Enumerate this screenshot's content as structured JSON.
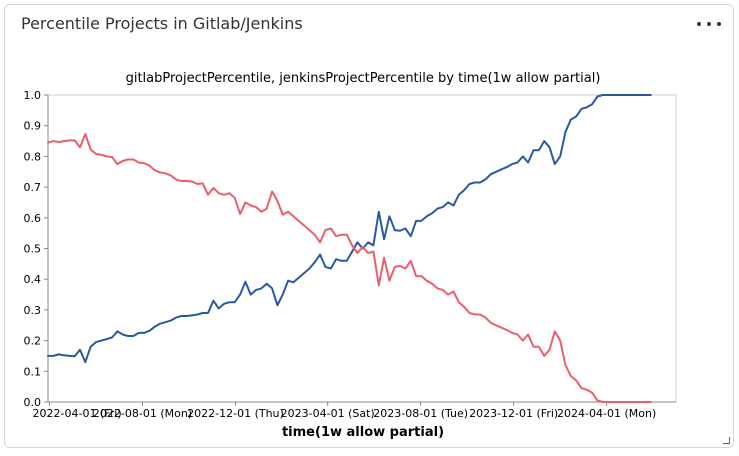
{
  "panel": {
    "title": "Percentile Projects in Gitlab/Jenkins",
    "menu_icon": "ellipsis-icon",
    "resize_icon": "resize-handle-icon"
  },
  "chart_data": {
    "type": "line",
    "title": "gitlabProjectPercentile, jenkinsProjectPercentile by time(1w allow partial)",
    "xlabel": "time(1w allow partial)",
    "ylabel": "",
    "xlim": [
      "2022-03-30",
      "2024-07-01"
    ],
    "ylim": [
      0,
      1
    ],
    "y_ticks": [
      0.0,
      0.1,
      0.2,
      0.3,
      0.4,
      0.5,
      0.6,
      0.7,
      0.8,
      0.9,
      1.0
    ],
    "y_tick_labels": [
      "0.0",
      "0.1",
      "0.2",
      "0.3",
      "0.4",
      "0.5",
      "0.6",
      "0.7",
      "0.8",
      "0.9",
      "1.0"
    ],
    "x_ticks": [
      {
        "date": "2022-04-01",
        "label": "2022-04-01 (Fri)"
      },
      {
        "date": "2022-08-01",
        "label": "2022-08-01 (Mon)"
      },
      {
        "date": "2022-12-01",
        "label": "2022-12-01 (Thu)"
      },
      {
        "date": "2023-04-01",
        "label": "2023-04-01 (Sat)"
      },
      {
        "date": "2023-08-01",
        "label": "2023-08-01 (Tue)"
      },
      {
        "date": "2023-12-01",
        "label": "2023-12-01 (Fri)"
      },
      {
        "date": "2024-04-01",
        "label": "2024-04-01 (Mon)"
      }
    ],
    "grid": false,
    "legend": "none",
    "series": [
      {
        "key": "gitlabProjectPercentile",
        "color": "#2a59a3",
        "points": [
          [
            "2022-03-30",
            0.15
          ],
          [
            "2022-04-06",
            0.15
          ],
          [
            "2022-04-13",
            0.155
          ],
          [
            "2022-04-20",
            0.152
          ],
          [
            "2022-04-27",
            0.15
          ],
          [
            "2022-05-04",
            0.149
          ],
          [
            "2022-05-11",
            0.17
          ],
          [
            "2022-05-18",
            0.13
          ],
          [
            "2022-05-25",
            0.18
          ],
          [
            "2022-06-01",
            0.195
          ],
          [
            "2022-06-08",
            0.2
          ],
          [
            "2022-06-15",
            0.205
          ],
          [
            "2022-06-22",
            0.21
          ],
          [
            "2022-06-29",
            0.23
          ],
          [
            "2022-07-06",
            0.22
          ],
          [
            "2022-07-13",
            0.215
          ],
          [
            "2022-07-20",
            0.215
          ],
          [
            "2022-07-27",
            0.225
          ],
          [
            "2022-08-03",
            0.225
          ],
          [
            "2022-08-10",
            0.232
          ],
          [
            "2022-08-17",
            0.245
          ],
          [
            "2022-08-24",
            0.255
          ],
          [
            "2022-08-31",
            0.26
          ],
          [
            "2022-09-07",
            0.265
          ],
          [
            "2022-09-14",
            0.275
          ],
          [
            "2022-09-21",
            0.28
          ],
          [
            "2022-09-28",
            0.28
          ],
          [
            "2022-10-05",
            0.282
          ],
          [
            "2022-10-12",
            0.285
          ],
          [
            "2022-10-19",
            0.29
          ],
          [
            "2022-10-26",
            0.29
          ],
          [
            "2022-11-02",
            0.33
          ],
          [
            "2022-11-09",
            0.305
          ],
          [
            "2022-11-16",
            0.32
          ],
          [
            "2022-11-23",
            0.325
          ],
          [
            "2022-11-30",
            0.325
          ],
          [
            "2022-12-07",
            0.35
          ],
          [
            "2022-12-14",
            0.392
          ],
          [
            "2022-12-21",
            0.35
          ],
          [
            "2022-12-28",
            0.365
          ],
          [
            "2023-01-04",
            0.37
          ],
          [
            "2023-01-11",
            0.385
          ],
          [
            "2023-01-18",
            0.37
          ],
          [
            "2023-01-25",
            0.315
          ],
          [
            "2023-02-01",
            0.35
          ],
          [
            "2023-02-08",
            0.395
          ],
          [
            "2023-02-15",
            0.39
          ],
          [
            "2023-02-22",
            0.405
          ],
          [
            "2023-03-01",
            0.42
          ],
          [
            "2023-03-08",
            0.435
          ],
          [
            "2023-03-15",
            0.455
          ],
          [
            "2023-03-22",
            0.48
          ],
          [
            "2023-03-29",
            0.44
          ],
          [
            "2023-04-05",
            0.435
          ],
          [
            "2023-04-12",
            0.465
          ],
          [
            "2023-04-19",
            0.46
          ],
          [
            "2023-04-26",
            0.46
          ],
          [
            "2023-05-03",
            0.49
          ],
          [
            "2023-05-10",
            0.52
          ],
          [
            "2023-05-17",
            0.5
          ],
          [
            "2023-05-24",
            0.52
          ],
          [
            "2023-05-31",
            0.51
          ],
          [
            "2023-06-07",
            0.62
          ],
          [
            "2023-06-14",
            0.53
          ],
          [
            "2023-06-21",
            0.605
          ],
          [
            "2023-06-28",
            0.56
          ],
          [
            "2023-07-05",
            0.558
          ],
          [
            "2023-07-12",
            0.565
          ],
          [
            "2023-07-19",
            0.54
          ],
          [
            "2023-07-26",
            0.59
          ],
          [
            "2023-08-02",
            0.59
          ],
          [
            "2023-08-09",
            0.605
          ],
          [
            "2023-08-16",
            0.615
          ],
          [
            "2023-08-23",
            0.63
          ],
          [
            "2023-08-30",
            0.635
          ],
          [
            "2023-09-06",
            0.65
          ],
          [
            "2023-09-13",
            0.64
          ],
          [
            "2023-09-20",
            0.675
          ],
          [
            "2023-09-27",
            0.69
          ],
          [
            "2023-10-04",
            0.71
          ],
          [
            "2023-10-11",
            0.715
          ],
          [
            "2023-10-18",
            0.715
          ],
          [
            "2023-10-25",
            0.725
          ],
          [
            "2023-11-01",
            0.742
          ],
          [
            "2023-11-08",
            0.75
          ],
          [
            "2023-11-15",
            0.758
          ],
          [
            "2023-11-22",
            0.765
          ],
          [
            "2023-11-29",
            0.775
          ],
          [
            "2023-12-06",
            0.78
          ],
          [
            "2023-12-13",
            0.8
          ],
          [
            "2023-12-20",
            0.78
          ],
          [
            "2023-12-27",
            0.82
          ],
          [
            "2024-01-03",
            0.82
          ],
          [
            "2024-01-10",
            0.85
          ],
          [
            "2024-01-17",
            0.83
          ],
          [
            "2024-01-24",
            0.775
          ],
          [
            "2024-01-31",
            0.8
          ],
          [
            "2024-02-07",
            0.88
          ],
          [
            "2024-02-14",
            0.92
          ],
          [
            "2024-02-21",
            0.93
          ],
          [
            "2024-02-28",
            0.955
          ],
          [
            "2024-03-06",
            0.96
          ],
          [
            "2024-03-13",
            0.97
          ],
          [
            "2024-03-20",
            0.995
          ],
          [
            "2024-03-27",
            1.0
          ],
          [
            "2024-04-03",
            1.0
          ],
          [
            "2024-04-10",
            1.0
          ],
          [
            "2024-04-17",
            1.0
          ],
          [
            "2024-04-24",
            1.0
          ],
          [
            "2024-05-01",
            1.0
          ],
          [
            "2024-05-08",
            1.0
          ],
          [
            "2024-05-15",
            1.0
          ],
          [
            "2024-05-22",
            1.0
          ],
          [
            "2024-05-29",
            1.0
          ]
        ]
      },
      {
        "key": "jenkinsProjectPercentile",
        "color": "#ea5f6a",
        "points": [
          [
            "2022-03-30",
            0.845
          ],
          [
            "2022-04-06",
            0.85
          ],
          [
            "2022-04-13",
            0.847
          ],
          [
            "2022-04-20",
            0.85
          ],
          [
            "2022-04-27",
            0.852
          ],
          [
            "2022-05-04",
            0.852
          ],
          [
            "2022-05-11",
            0.83
          ],
          [
            "2022-05-18",
            0.873
          ],
          [
            "2022-05-25",
            0.822
          ],
          [
            "2022-06-01",
            0.808
          ],
          [
            "2022-06-08",
            0.805
          ],
          [
            "2022-06-15",
            0.8
          ],
          [
            "2022-06-22",
            0.798
          ],
          [
            "2022-06-29",
            0.775
          ],
          [
            "2022-07-06",
            0.785
          ],
          [
            "2022-07-13",
            0.79
          ],
          [
            "2022-07-20",
            0.79
          ],
          [
            "2022-07-27",
            0.78
          ],
          [
            "2022-08-03",
            0.778
          ],
          [
            "2022-08-10",
            0.77
          ],
          [
            "2022-08-17",
            0.755
          ],
          [
            "2022-08-24",
            0.748
          ],
          [
            "2022-08-31",
            0.745
          ],
          [
            "2022-09-07",
            0.738
          ],
          [
            "2022-09-14",
            0.725
          ],
          [
            "2022-09-21",
            0.72
          ],
          [
            "2022-09-28",
            0.72
          ],
          [
            "2022-10-05",
            0.718
          ],
          [
            "2022-10-12",
            0.71
          ],
          [
            "2022-10-19",
            0.712
          ],
          [
            "2022-10-26",
            0.675
          ],
          [
            "2022-11-02",
            0.697
          ],
          [
            "2022-11-09",
            0.68
          ],
          [
            "2022-11-16",
            0.675
          ],
          [
            "2022-11-23",
            0.68
          ],
          [
            "2022-11-30",
            0.665
          ],
          [
            "2022-12-07",
            0.612
          ],
          [
            "2022-12-14",
            0.65
          ],
          [
            "2022-12-21",
            0.64
          ],
          [
            "2022-12-28",
            0.635
          ],
          [
            "2023-01-04",
            0.62
          ],
          [
            "2023-01-11",
            0.63
          ],
          [
            "2023-01-18",
            0.686
          ],
          [
            "2023-01-25",
            0.655
          ],
          [
            "2023-02-01",
            0.61
          ],
          [
            "2023-02-08",
            0.62
          ],
          [
            "2023-02-15",
            0.605
          ],
          [
            "2023-02-22",
            0.59
          ],
          [
            "2023-03-01",
            0.575
          ],
          [
            "2023-03-08",
            0.56
          ],
          [
            "2023-03-15",
            0.545
          ],
          [
            "2023-03-22",
            0.52
          ],
          [
            "2023-03-29",
            0.56
          ],
          [
            "2023-04-05",
            0.565
          ],
          [
            "2023-04-12",
            0.54
          ],
          [
            "2023-04-19",
            0.545
          ],
          [
            "2023-04-26",
            0.545
          ],
          [
            "2023-05-03",
            0.51
          ],
          [
            "2023-05-10",
            0.485
          ],
          [
            "2023-05-17",
            0.505
          ],
          [
            "2023-05-24",
            0.485
          ],
          [
            "2023-05-31",
            0.49
          ],
          [
            "2023-06-07",
            0.38
          ],
          [
            "2023-06-14",
            0.47
          ],
          [
            "2023-06-21",
            0.395
          ],
          [
            "2023-06-28",
            0.44
          ],
          [
            "2023-07-05",
            0.443
          ],
          [
            "2023-07-12",
            0.435
          ],
          [
            "2023-07-19",
            0.46
          ],
          [
            "2023-07-26",
            0.41
          ],
          [
            "2023-08-02",
            0.41
          ],
          [
            "2023-08-09",
            0.395
          ],
          [
            "2023-08-16",
            0.385
          ],
          [
            "2023-08-23",
            0.37
          ],
          [
            "2023-08-30",
            0.365
          ],
          [
            "2023-09-06",
            0.35
          ],
          [
            "2023-09-13",
            0.36
          ],
          [
            "2023-09-20",
            0.325
          ],
          [
            "2023-09-27",
            0.31
          ],
          [
            "2023-10-04",
            0.29
          ],
          [
            "2023-10-11",
            0.285
          ],
          [
            "2023-10-18",
            0.285
          ],
          [
            "2023-10-25",
            0.275
          ],
          [
            "2023-11-01",
            0.258
          ],
          [
            "2023-11-08",
            0.25
          ],
          [
            "2023-11-15",
            0.242
          ],
          [
            "2023-11-22",
            0.235
          ],
          [
            "2023-11-29",
            0.225
          ],
          [
            "2023-12-06",
            0.22
          ],
          [
            "2023-12-13",
            0.2
          ],
          [
            "2023-12-20",
            0.22
          ],
          [
            "2023-12-27",
            0.18
          ],
          [
            "2024-01-03",
            0.18
          ],
          [
            "2024-01-10",
            0.15
          ],
          [
            "2024-01-17",
            0.17
          ],
          [
            "2024-01-24",
            0.23
          ],
          [
            "2024-01-31",
            0.2
          ],
          [
            "2024-02-07",
            0.12
          ],
          [
            "2024-02-14",
            0.085
          ],
          [
            "2024-02-21",
            0.07
          ],
          [
            "2024-02-28",
            0.045
          ],
          [
            "2024-03-06",
            0.04
          ],
          [
            "2024-03-13",
            0.03
          ],
          [
            "2024-03-20",
            0.005
          ],
          [
            "2024-03-27",
            0.0
          ],
          [
            "2024-04-03",
            0.0
          ],
          [
            "2024-04-10",
            0.0
          ],
          [
            "2024-04-17",
            0.0
          ],
          [
            "2024-04-24",
            0.0
          ],
          [
            "2024-05-01",
            0.0
          ],
          [
            "2024-05-08",
            0.0
          ],
          [
            "2024-05-15",
            0.0
          ],
          [
            "2024-05-22",
            0.0
          ],
          [
            "2024-05-29",
            0.0
          ]
        ]
      }
    ]
  }
}
